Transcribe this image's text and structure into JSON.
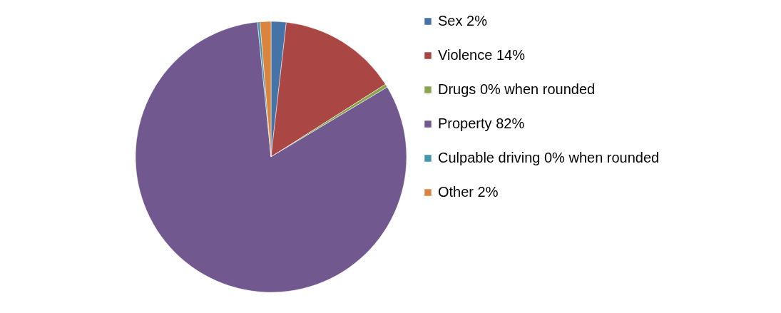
{
  "chart_data": {
    "type": "pie",
    "categories": [
      "Sex 2%",
      "Violence 14%",
      "Drugs 0% when rounded",
      "Property 82%",
      "Culpable driving 0% when rounded",
      "Other 2%"
    ],
    "values": [
      1.8,
      14.2,
      0.4,
      82.0,
      0.3,
      1.3
    ],
    "colors": [
      "#4572a7",
      "#aa4643",
      "#89a54e",
      "#71588f",
      "#4198af",
      "#db843d"
    ],
    "legend": "right"
  }
}
